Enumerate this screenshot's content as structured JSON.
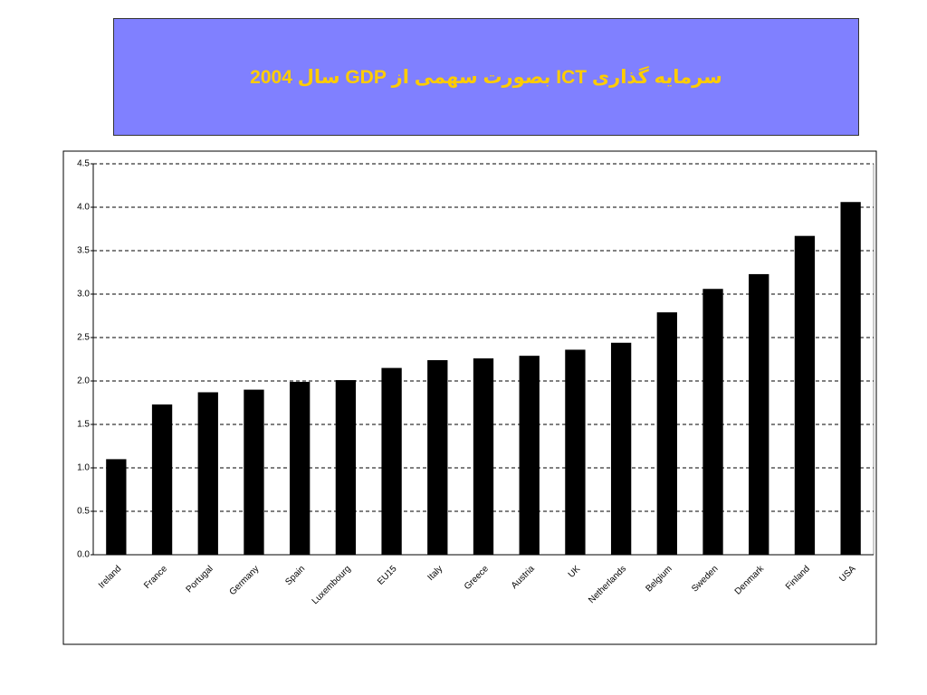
{
  "chart_data": {
    "type": "bar",
    "title": "سرمایه گذاری ICT بصورت سهمی از GDP سال 2004",
    "categories": [
      "Ireland",
      "France",
      "Portugal",
      "Germany",
      "Spain",
      "Luxembourg",
      "EU15",
      "Italy",
      "Greece",
      "Austria",
      "UK",
      "Netherlands",
      "Belgium",
      "Sweden",
      "Denmark",
      "Finland",
      "USA"
    ],
    "values": [
      1.1,
      1.73,
      1.87,
      1.9,
      1.99,
      2.01,
      2.15,
      2.24,
      2.26,
      2.29,
      2.36,
      2.44,
      2.79,
      3.06,
      3.23,
      3.67,
      4.06
    ],
    "color": "#000000",
    "ylim": [
      0,
      4.5
    ],
    "yticks": [
      {
        "value": 0,
        "label": "0.0"
      },
      0.5,
      {
        "value": 1,
        "label": "1.0"
      },
      1.5,
      {
        "value": 2,
        "label": "2.0"
      },
      2.5,
      {
        "value": 3,
        "label": "3.0"
      },
      3.5,
      {
        "value": 4,
        "label": "4.0"
      },
      4.5
    ],
    "grid": true
  }
}
